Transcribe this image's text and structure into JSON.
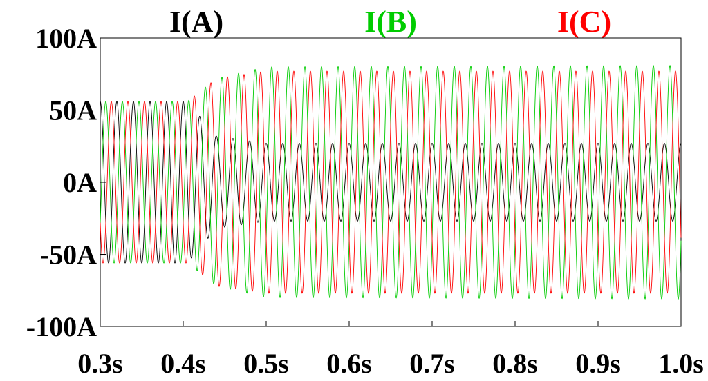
{
  "chart_data": {
    "type": "line",
    "title": "",
    "xlabel": "",
    "ylabel": "",
    "x_unit": "s",
    "y_unit": "A",
    "xlim": [
      0.3,
      1.0
    ],
    "ylim": [
      -100,
      100
    ],
    "x_ticks": [
      0.3,
      0.4,
      0.5,
      0.6,
      0.7,
      0.8,
      0.9,
      1.0
    ],
    "y_ticks": [
      100,
      50,
      0,
      -50,
      -100
    ],
    "x_tick_labels": [
      "0.3s",
      "0.4s",
      "0.5s",
      "0.6s",
      "0.7s",
      "0.8s",
      "0.9s",
      "1.0s"
    ],
    "y_tick_labels": [
      "100A",
      "50A",
      "0A",
      "-50A",
      "-100A"
    ],
    "grid": false,
    "legend": "top",
    "frequency_hz": 50,
    "series": [
      {
        "name": "I(A)",
        "color": "#000000",
        "envelope_points": [
          {
            "t": 0.3,
            "amplitude": 56
          },
          {
            "t": 0.405,
            "amplitude": 56
          },
          {
            "t": 0.44,
            "amplitude": 32
          },
          {
            "t": 0.5,
            "amplitude": 27
          },
          {
            "t": 1.0,
            "amplitude": 27
          }
        ],
        "phase_deg": 90
      },
      {
        "name": "I(B)",
        "color": "#00cc00",
        "envelope_points": [
          {
            "t": 0.3,
            "amplitude": 56
          },
          {
            "t": 0.405,
            "amplitude": 56
          },
          {
            "t": 0.44,
            "amplitude": 72
          },
          {
            "t": 0.5,
            "amplitude": 80
          },
          {
            "t": 1.0,
            "amplitude": 81
          }
        ],
        "phase_deg": -30
      },
      {
        "name": "I(C)",
        "color": "#ff0000",
        "envelope_points": [
          {
            "t": 0.3,
            "amplitude": 56
          },
          {
            "t": 0.405,
            "amplitude": 56
          },
          {
            "t": 0.44,
            "amplitude": 72
          },
          {
            "t": 0.5,
            "amplitude": 77
          },
          {
            "t": 1.0,
            "amplitude": 77
          }
        ],
        "phase_deg": 210
      }
    ]
  }
}
